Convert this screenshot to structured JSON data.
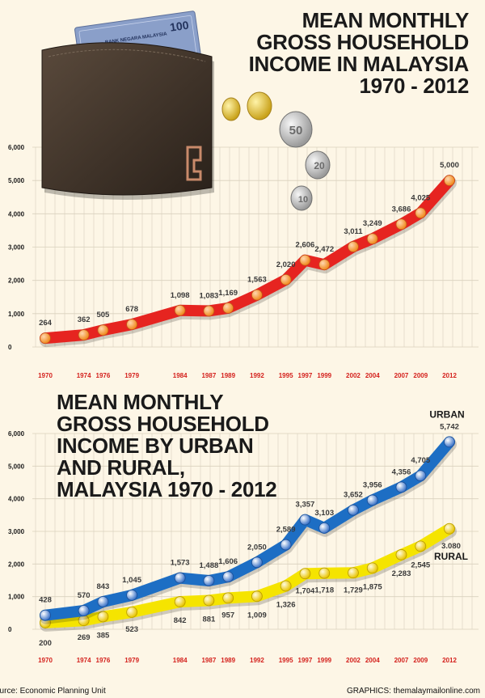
{
  "chart_data": [
    {
      "type": "line",
      "title_lines": [
        "MEAN MONTHLY",
        "GROSS HOUSEHOLD",
        "INCOME IN MALAYSIA",
        "1970 - 2012"
      ],
      "x": [
        1970,
        1974,
        1976,
        1979,
        1984,
        1987,
        1989,
        1992,
        1995,
        1997,
        1999,
        2002,
        2004,
        2007,
        2009,
        2012
      ],
      "series": [
        {
          "values": [
            264,
            362,
            505,
            678,
            1098,
            1083,
            1169,
            1563,
            2020,
            2606,
            2472,
            3011,
            3249,
            3686,
            4025,
            5000
          ],
          "color": "#e62420"
        }
      ],
      "y_ticks": [
        "0",
        "1,000",
        "2,000",
        "3,000",
        "4,000",
        "5,000",
        "6,000"
      ],
      "ylim": [
        0,
        6000
      ],
      "grid": true
    },
    {
      "type": "line",
      "title_lines": [
        "MEAN MONTHLY",
        "GROSS HOUSEHOLD",
        "INCOME BY URBAN",
        "AND RURAL,",
        "MALAYSIA 1970 - 2012"
      ],
      "x": [
        1970,
        1974,
        1976,
        1979,
        1984,
        1987,
        1989,
        1992,
        1995,
        1997,
        1999,
        2002,
        2004,
        2007,
        2009,
        2012
      ],
      "series": [
        {
          "name": "URBAN",
          "values": [
            428,
            570,
            843,
            1045,
            1573,
            1488,
            1606,
            2050,
            2589,
            3357,
            3103,
            3652,
            3956,
            4356,
            4705,
            5742
          ],
          "color": "#1d6ec4"
        },
        {
          "name": "RURAL",
          "values": [
            200,
            269,
            385,
            523,
            842,
            881,
            957,
            1009,
            1326,
            1704,
            1718,
            1729,
            1875,
            2283,
            2545,
            3080
          ],
          "color": "#f5e400"
        }
      ],
      "y_ticks": [
        "0",
        "1,000",
        "2,000",
        "3,000",
        "4,000",
        "5,000",
        "6,000"
      ],
      "ylim": [
        0,
        6000
      ],
      "grid": true
    }
  ],
  "labels": {
    "top": [
      "264",
      "362",
      "505",
      "678",
      "1,098",
      "1,083",
      "1,169",
      "1,563",
      "2,020",
      "2,606",
      "2,472",
      "3,011",
      "3,249",
      "3,686",
      "4,025",
      "5,000"
    ],
    "urban": [
      "428",
      "570",
      "843",
      "1,045",
      "1,573",
      "1,488",
      "1,606",
      "2,050",
      "2,589",
      "3,357",
      "3,103",
      "3,652",
      "3,956",
      "4,356",
      "4,705",
      "5,742"
    ],
    "rural": [
      "200",
      "269",
      "385",
      "523",
      "842",
      "881",
      "957",
      "1,009",
      "1,326",
      "1,704",
      "1,718",
      "1,729",
      "1,875",
      "2,283",
      "2,545",
      "3.080"
    ]
  },
  "footer": {
    "source": "ource: Economic Planning Unit",
    "credit": "GRAPHICS: themalaymailonline.com"
  },
  "illustration": {
    "banknote_text": "100",
    "note_caption": "BANK NEGARA MALAYSIA",
    "coins": [
      "50",
      "20",
      "10"
    ]
  },
  "colors": {
    "background": "#fdf6e6",
    "grid": "#d9d0bd",
    "year_label": "#d4201c",
    "text": "#1a1a1a"
  }
}
